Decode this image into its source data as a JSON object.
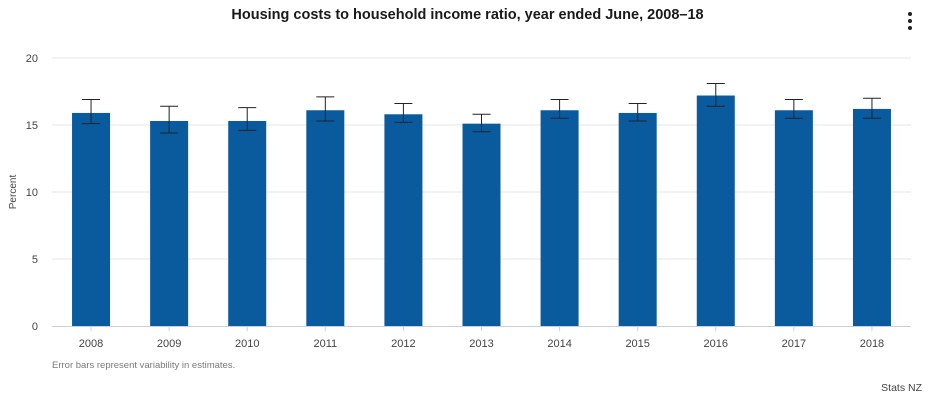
{
  "title": "Housing costs to household income ratio, year ended June, 2008–18",
  "menu_icon": "vertical-ellipsis-icon",
  "note": "Error bars represent variability in estimates.",
  "credit": "Stats NZ",
  "colors": {
    "bar": "#0a5a9e",
    "grid": "#e6e6e6",
    "axis": "#c9cfe0",
    "error": "#222222"
  },
  "chart_data": {
    "type": "bar",
    "title": "Housing costs to household income ratio, year ended June, 2008–18",
    "xlabel": "",
    "ylabel": "Percent",
    "ylim": [
      0,
      20
    ],
    "yticks": [
      0,
      5,
      10,
      15,
      20
    ],
    "grid": true,
    "categories": [
      "2008",
      "2009",
      "2010",
      "2011",
      "2012",
      "2013",
      "2014",
      "2015",
      "2016",
      "2017",
      "2018"
    ],
    "values": [
      15.9,
      15.3,
      15.3,
      16.1,
      15.8,
      15.1,
      16.1,
      15.9,
      17.2,
      16.1,
      16.2
    ],
    "error_low": [
      15.1,
      14.4,
      14.6,
      15.3,
      15.2,
      14.5,
      15.5,
      15.3,
      16.4,
      15.5,
      15.5
    ],
    "error_high": [
      16.9,
      16.4,
      16.3,
      17.1,
      16.6,
      15.8,
      16.9,
      16.6,
      18.1,
      16.9,
      17.0
    ]
  }
}
